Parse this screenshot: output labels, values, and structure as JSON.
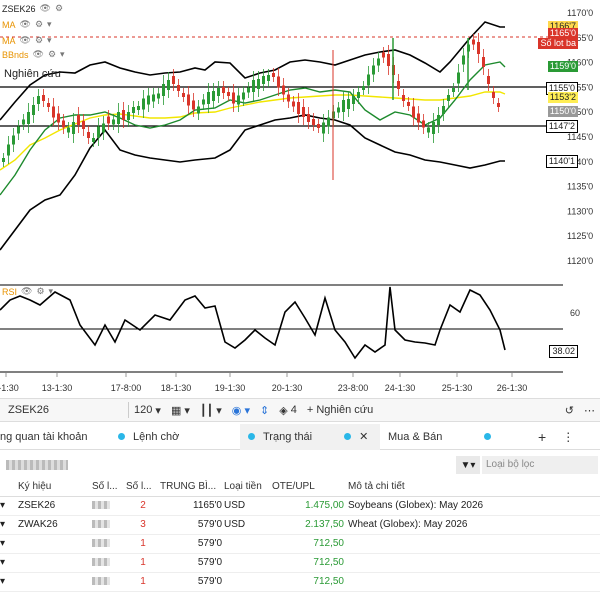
{
  "chart": {
    "price_axis": [
      "1170'0",
      "1165'0",
      "1160'0",
      "1155'0",
      "1150'0",
      "1145'0",
      "1140'0",
      "1135'0",
      "1130'0",
      "1125'0",
      "1120'0"
    ],
    "time_axis": [
      "1-1:30",
      "13-1:30",
      "17-8:00",
      "18-1:30",
      "19-1:30",
      "20-1:30",
      "23-8:00",
      "24-1:30",
      "25-1:30",
      "26-1:30"
    ],
    "tags": {
      "upper_band": "1166'7",
      "last_price": "1165'0",
      "lot_note": "Số lot ba",
      "mid_band": "1159'0",
      "level_1": "1155'0",
      "ma_value": "1153'2",
      "close": "1150'0",
      "level_2": "1147'2",
      "lower_band": "1140'1"
    },
    "legend": {
      "symbol": "ZSEK26",
      "ma1": "MA",
      "ma2": "MA",
      "bb": "BBnds"
    },
    "study_label": "Nghiên cứu",
    "rsi": {
      "label": "RSI",
      "axis_label": "60",
      "value": "38.02"
    },
    "colors": {
      "up": "#2a9a35",
      "down": "#d9352a",
      "ma_fast": "#1d8a2d",
      "ma_slow": "#f2e600",
      "band": "#000000"
    }
  },
  "toolbar": {
    "symbol": "ZSEK26",
    "interval": "120",
    "count": "4",
    "study_button": "+ Nghiên cứu"
  },
  "tabs": [
    {
      "label": "ng quan tài khoản"
    },
    {
      "label": "Lệnh chờ"
    },
    {
      "label": "Trạng thái"
    },
    {
      "label": "Mua & Bán"
    }
  ],
  "filter": {
    "placeholder": "Loại bộ lọc"
  },
  "table": {
    "headers": [
      "Ký hiệu",
      "Số l...",
      "Số l...",
      "TRUNG BÌ...",
      "Loại tiền",
      "OTE/UPL",
      "Mô tả chi tiết"
    ],
    "rows": [
      {
        "symbol": "ZSEK26",
        "qty": "2",
        "avg": "1165'0",
        "ccy": "USD",
        "ote": "1.475,00",
        "desc": "Soybeans (Globex): May 2026"
      },
      {
        "symbol": "ZWAK26",
        "qty": "3",
        "avg": "579'0",
        "ccy": "USD",
        "ote": "2.137,50",
        "desc": "Wheat (Globex): May 2026"
      },
      {
        "symbol": "",
        "qty": "1",
        "avg": "579'0",
        "ccy": "",
        "ote": "712,50",
        "desc": ""
      },
      {
        "symbol": "",
        "qty": "1",
        "avg": "579'0",
        "ccy": "",
        "ote": "712,50",
        "desc": ""
      },
      {
        "symbol": "",
        "qty": "1",
        "avg": "579'0",
        "ccy": "",
        "ote": "712,50",
        "desc": ""
      }
    ]
  }
}
